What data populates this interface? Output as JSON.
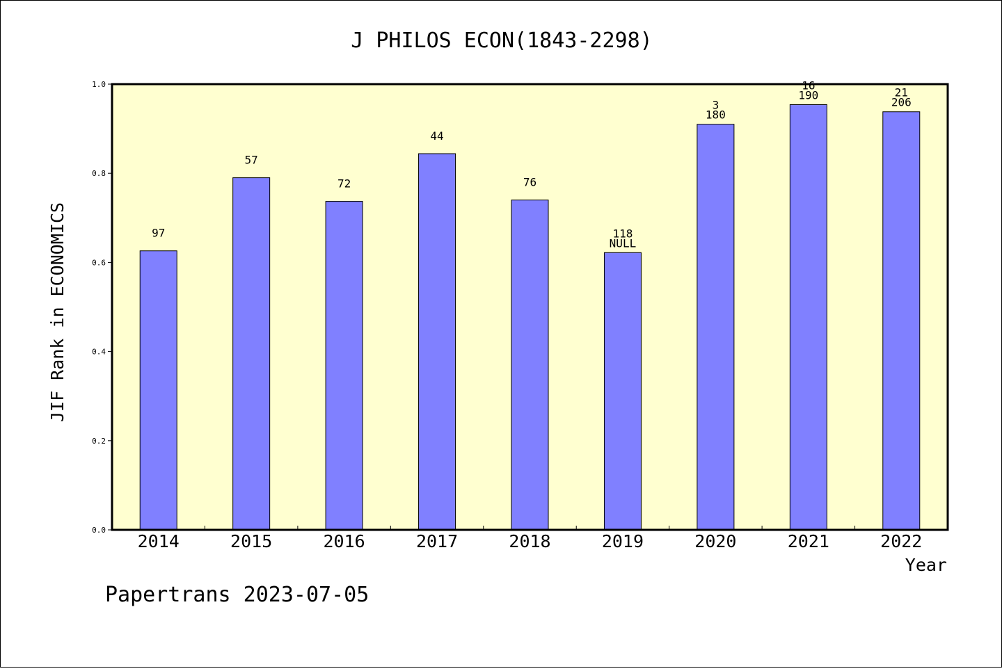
{
  "chart_data": {
    "type": "bar",
    "title": "J PHILOS ECON(1843-2298)",
    "xlabel": "Year",
    "ylabel": "JIF Rank in ECONOMICS",
    "ylim": [
      0,
      1.0
    ],
    "yticks": [
      "0.0",
      "0.2",
      "0.4",
      "0.6",
      "0.8",
      "1.0"
    ],
    "categories": [
      "2014",
      "2015",
      "2016",
      "2017",
      "2018",
      "2019",
      "2020",
      "2021",
      "2022"
    ],
    "values": [
      0.626,
      0.79,
      0.737,
      0.844,
      0.74,
      0.622,
      0.91,
      0.954,
      0.938
    ],
    "bar_labels": [
      [
        "97"
      ],
      [
        "57"
      ],
      [
        "72"
      ],
      [
        "44"
      ],
      [
        "76"
      ],
      [
        "118",
        "NULL"
      ],
      [
        "3",
        "180"
      ],
      [
        "16",
        "190"
      ],
      [
        "21",
        "206"
      ]
    ],
    "colors": {
      "bar": "#8080ff",
      "plot_bg": "#ffffd0"
    },
    "grid": false
  },
  "footer": {
    "credit": "Papertrans 2023-07-05"
  }
}
